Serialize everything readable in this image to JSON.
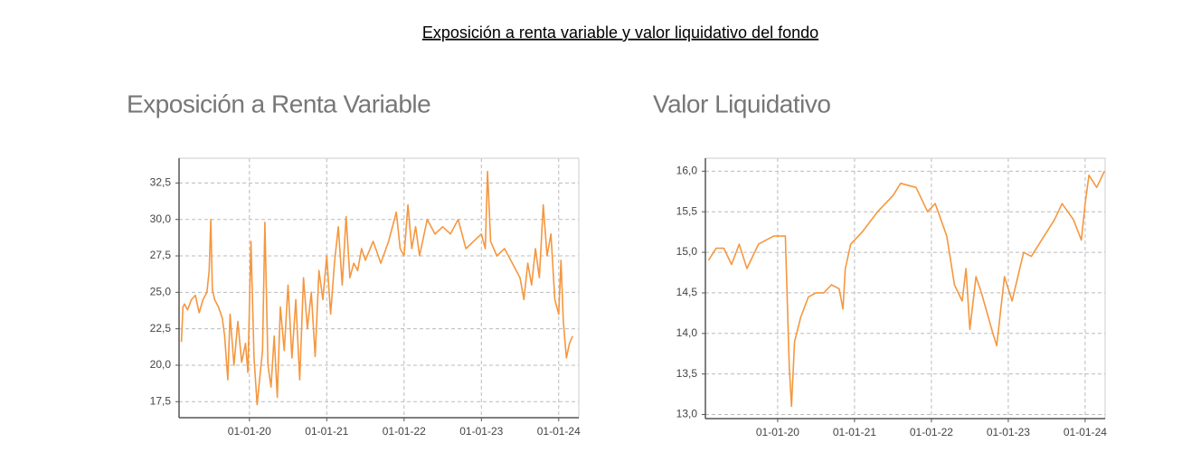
{
  "title": "Exposición a renta variable y valor liquidativo del fondo",
  "chart_data": [
    {
      "type": "line",
      "title": "Exposición a Renta Variable",
      "grid": true,
      "xlim": [
        2019.09,
        2024.26
      ],
      "ylim": [
        16.4,
        34.2
      ],
      "xticks": [
        {
          "value": 2020,
          "label": "01-01-20"
        },
        {
          "value": 2021,
          "label": "01-01-21"
        },
        {
          "value": 2022,
          "label": "01-01-22"
        },
        {
          "value": 2023,
          "label": "01-01-23"
        },
        {
          "value": 2024,
          "label": "01-01-24"
        }
      ],
      "yticks": [
        {
          "value": 17.5,
          "label": "17,5"
        },
        {
          "value": 20,
          "label": "20,0"
        },
        {
          "value": 22.5,
          "label": "22,5"
        },
        {
          "value": 25,
          "label": "25,0"
        },
        {
          "value": 27.5,
          "label": "27,5"
        },
        {
          "value": 30,
          "label": "30,0"
        },
        {
          "value": 32.5,
          "label": "32,5"
        }
      ],
      "x": [
        2019.12,
        2019.14,
        2019.16,
        2019.2,
        2019.25,
        2019.3,
        2019.35,
        2019.4,
        2019.45,
        2019.48,
        2019.5,
        2019.52,
        2019.55,
        2019.6,
        2019.65,
        2019.68,
        2019.72,
        2019.75,
        2019.8,
        2019.85,
        2019.9,
        2019.95,
        2019.98,
        2020.02,
        2020.06,
        2020.1,
        2020.14,
        2020.17,
        2020.2,
        2020.24,
        2020.28,
        2020.32,
        2020.36,
        2020.4,
        2020.45,
        2020.5,
        2020.55,
        2020.6,
        2020.65,
        2020.7,
        2020.75,
        2020.8,
        2020.85,
        2020.9,
        2020.95,
        2021.0,
        2021.05,
        2021.1,
        2021.15,
        2021.2,
        2021.25,
        2021.3,
        2021.35,
        2021.4,
        2021.45,
        2021.5,
        2021.6,
        2021.7,
        2021.8,
        2021.9,
        2021.95,
        2022.0,
        2022.05,
        2022.1,
        2022.15,
        2022.2,
        2022.3,
        2022.4,
        2022.5,
        2022.6,
        2022.7,
        2022.8,
        2022.9,
        2023.0,
        2023.05,
        2023.08,
        2023.12,
        2023.2,
        2023.3,
        2023.4,
        2023.5,
        2023.55,
        2023.6,
        2023.65,
        2023.7,
        2023.75,
        2023.8,
        2023.85,
        2023.9,
        2023.95,
        2024.0,
        2024.03,
        2024.06,
        2024.1,
        2024.14,
        2024.18
      ],
      "series": [
        {
          "name": "Exposición",
          "color": "#f5973f",
          "values": [
            21.6,
            24.0,
            24.2,
            23.8,
            24.5,
            24.8,
            23.6,
            24.5,
            25.0,
            26.5,
            30.0,
            25.2,
            24.5,
            24.0,
            23.2,
            22.0,
            19.0,
            23.5,
            20.0,
            23.0,
            20.2,
            21.5,
            19.5,
            28.5,
            20.5,
            17.3,
            19.5,
            21.0,
            29.8,
            20.0,
            18.5,
            22.0,
            17.8,
            24.0,
            21.0,
            25.5,
            20.5,
            24.5,
            19.0,
            26.0,
            22.5,
            25.0,
            20.6,
            26.5,
            24.5,
            27.5,
            23.5,
            27.0,
            29.5,
            25.5,
            30.2,
            26.0,
            27.0,
            26.5,
            28.0,
            27.2,
            28.5,
            27.0,
            28.5,
            30.5,
            28.0,
            27.5,
            31.0,
            28.0,
            29.5,
            27.5,
            30.0,
            29.0,
            29.5,
            29.0,
            30.0,
            28.0,
            28.5,
            29.0,
            28.0,
            33.3,
            28.5,
            27.5,
            28.0,
            27.0,
            26.0,
            24.5,
            27.0,
            25.5,
            28.0,
            26.0,
            31.0,
            27.5,
            29.0,
            24.5,
            23.5,
            27.2,
            23.0,
            20.5,
            21.5,
            22.0
          ]
        }
      ]
    },
    {
      "type": "line",
      "title": "Valor Liquidativo",
      "grid": true,
      "xlim": [
        2019.06,
        2024.26
      ],
      "ylim": [
        12.95,
        16.16
      ],
      "xticks": [
        {
          "value": 2020,
          "label": "01-01-20"
        },
        {
          "value": 2021,
          "label": "01-01-21"
        },
        {
          "value": 2022,
          "label": "01-01-22"
        },
        {
          "value": 2023,
          "label": "01-01-23"
        },
        {
          "value": 2024,
          "label": "01-01-24"
        }
      ],
      "yticks": [
        {
          "value": 13,
          "label": "13,0"
        },
        {
          "value": 13.5,
          "label": "13,5"
        },
        {
          "value": 14,
          "label": "14,0"
        },
        {
          "value": 14.5,
          "label": "14,5"
        },
        {
          "value": 15,
          "label": "15,0"
        },
        {
          "value": 15.5,
          "label": "15,5"
        },
        {
          "value": 16,
          "label": "16,0"
        }
      ],
      "x": [
        2019.1,
        2019.2,
        2019.3,
        2019.4,
        2019.5,
        2019.6,
        2019.75,
        2019.85,
        2019.95,
        2020.1,
        2020.15,
        2020.18,
        2020.22,
        2020.3,
        2020.4,
        2020.5,
        2020.6,
        2020.7,
        2020.8,
        2020.85,
        2020.88,
        2020.95,
        2021.1,
        2021.3,
        2021.5,
        2021.6,
        2021.8,
        2021.95,
        2022.05,
        2022.2,
        2022.3,
        2022.4,
        2022.45,
        2022.5,
        2022.58,
        2022.65,
        2022.8,
        2022.85,
        2022.95,
        2023.05,
        2023.2,
        2023.3,
        2023.4,
        2023.6,
        2023.7,
        2023.85,
        2023.95,
        2024.0,
        2024.05,
        2024.15,
        2024.25
      ],
      "series": [
        {
          "name": "Valor liquidativo",
          "color": "#f5973f",
          "values": [
            14.9,
            15.05,
            15.05,
            14.85,
            15.1,
            14.8,
            15.1,
            15.15,
            15.2,
            15.2,
            13.6,
            13.1,
            13.9,
            14.2,
            14.45,
            14.5,
            14.5,
            14.6,
            14.55,
            14.3,
            14.8,
            15.1,
            15.25,
            15.5,
            15.7,
            15.85,
            15.8,
            15.5,
            15.6,
            15.2,
            14.6,
            14.4,
            14.8,
            14.05,
            14.7,
            14.5,
            14.0,
            13.85,
            14.7,
            14.4,
            15.0,
            14.95,
            15.1,
            15.4,
            15.6,
            15.4,
            15.15,
            15.6,
            15.95,
            15.8,
            16.0
          ]
        }
      ]
    }
  ]
}
